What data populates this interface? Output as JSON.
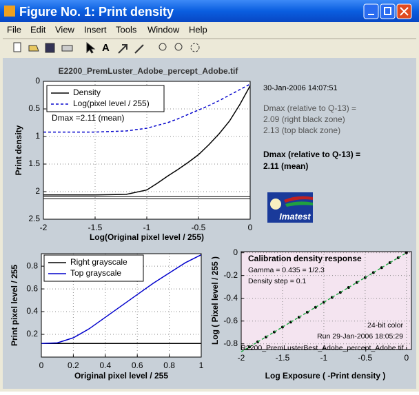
{
  "window": {
    "title": "Figure No. 1: Print density",
    "menu": [
      "File",
      "Edit",
      "View",
      "Insert",
      "Tools",
      "Window",
      "Help"
    ]
  },
  "side_text": {
    "timestamp": "30-Jan-2006 14:07:51",
    "dmax_heading": "Dmax (relative to Q-13) =",
    "right_zone": "2.09 (right black zone)",
    "top_zone": "2.13 (top black zone)",
    "dmax_bold_heading": "Dmax (relative to Q-13) =",
    "dmax_bold_value": "2.11 (mean)",
    "logo": "Imatest"
  },
  "chart_data": [
    {
      "type": "line",
      "title": "E2200_PremLuster_Adobe_percept_Adobe.tif",
      "xlabel": "Log(Original pixel level / 255)",
      "ylabel": "Print density",
      "annotation": "Dmax =2.11 (mean)",
      "x": [
        -2,
        -1.5,
        -1.2,
        -1.0,
        -0.9,
        -0.8,
        -0.7,
        -0.6,
        -0.5,
        -0.4,
        -0.3,
        -0.2,
        -0.1,
        0
      ],
      "series": [
        {
          "name": "Density",
          "color": "#000000",
          "style": "solid",
          "values": [
            2.06,
            2.06,
            2.05,
            1.97,
            1.85,
            1.72,
            1.6,
            1.47,
            1.33,
            1.15,
            0.95,
            0.72,
            0.42,
            0.08
          ]
        },
        {
          "name": "Log(pixel level / 255)",
          "color": "#0000cc",
          "style": "dashed",
          "values": [
            0.92,
            0.92,
            0.9,
            0.85,
            0.8,
            0.75,
            0.68,
            0.6,
            0.52,
            0.44,
            0.35,
            0.25,
            0.15,
            0.05
          ]
        }
      ],
      "reference_lines": [
        2.09,
        2.13
      ],
      "xlim": [
        -2,
        0
      ],
      "xticks": [
        -2,
        -1.5,
        -1,
        -0.5,
        0
      ],
      "ylim": [
        0,
        2.5
      ],
      "yticks": [
        0,
        0.5,
        1,
        1.5,
        2,
        2.5
      ],
      "y_reversed": true,
      "grid": true,
      "legend": "upper left"
    },
    {
      "type": "line",
      "xlabel": "Original pixel level / 255",
      "ylabel": "Print pixel level / 255",
      "x": [
        0,
        0.1,
        0.2,
        0.3,
        0.4,
        0.5,
        0.6,
        0.7,
        0.8,
        0.9,
        1
      ],
      "series": [
        {
          "name": "Right grayscale",
          "color": "#000000",
          "style": "solid",
          "values": [
            0.12,
            0.12,
            0.12,
            0.12,
            0.12,
            0.12,
            0.12,
            0.12,
            0.12,
            0.12,
            0.12
          ]
        },
        {
          "name": "Top grayscale",
          "color": "#0000cc",
          "style": "solid",
          "values": [
            0.12,
            0.125,
            0.17,
            0.25,
            0.35,
            0.45,
            0.55,
            0.65,
            0.74,
            0.83,
            0.9
          ]
        }
      ],
      "xlim": [
        0,
        1
      ],
      "xticks": [
        0,
        0.2,
        0.4,
        0.6,
        0.8,
        1
      ],
      "ylim": [
        0,
        0.91
      ],
      "yticks": [
        0.2,
        0.4,
        0.6,
        0.8
      ],
      "grid": true,
      "legend": "upper left"
    },
    {
      "type": "scatter",
      "title": "Calibration density response",
      "xlabel": "Log Exposure ( -Print density )",
      "ylabel": "Log ( Pixel level / 255 )",
      "notes": [
        "Gamma = 0.435 = 1/2.3",
        "Density step = 0.1"
      ],
      "footer": [
        "24-bit color",
        "Run 29-Jan-2006 18:05:29"
      ],
      "file": "R2200_PremLusterBest_Adobe_percept_Adobe.tif",
      "background": "#f4e4f0",
      "series": [
        {
          "color": "#000000",
          "marker": true,
          "x": [
            -1.9,
            -1.8,
            -1.7,
            -1.6,
            -1.5,
            -1.4,
            -1.3,
            -1.2,
            -1.1,
            -1.0,
            -0.9,
            -0.8,
            -0.7,
            -0.6,
            -0.5,
            -0.4,
            -0.3,
            -0.2,
            -0.1,
            0
          ],
          "values": [
            -0.827,
            -0.783,
            -0.74,
            -0.696,
            -0.653,
            -0.609,
            -0.566,
            -0.522,
            -0.479,
            -0.435,
            -0.392,
            -0.348,
            -0.305,
            -0.261,
            -0.218,
            -0.174,
            -0.131,
            -0.087,
            -0.044,
            0
          ]
        },
        {
          "color": "#22aa44",
          "style": "dashed",
          "x": [
            -2,
            0
          ],
          "values": [
            -0.87,
            0
          ]
        }
      ],
      "xlim": [
        -2,
        0.06
      ],
      "xticks": [
        -2,
        -1.5,
        -1,
        -0.5,
        0
      ],
      "ylim": [
        -0.85,
        0.01
      ],
      "yticks": [
        0,
        -0.2,
        -0.4,
        -0.6,
        -0.8
      ],
      "grid": true
    }
  ]
}
